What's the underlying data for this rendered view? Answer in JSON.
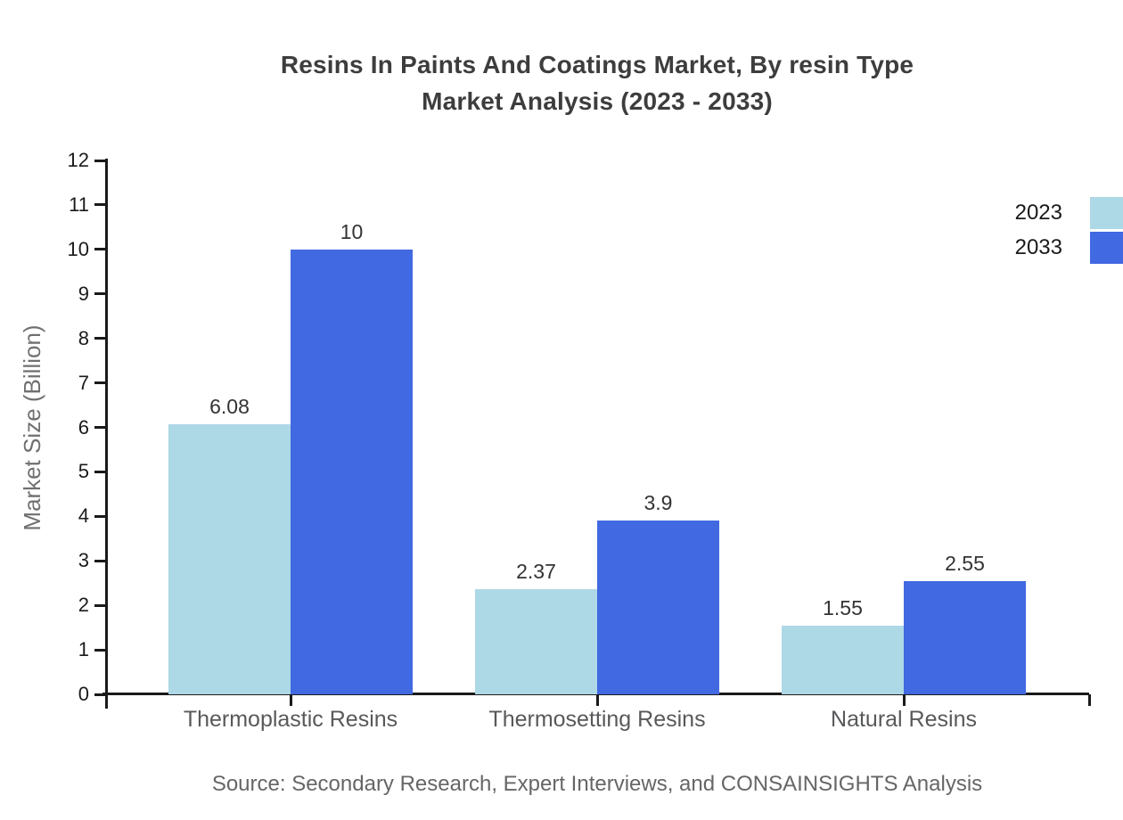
{
  "title": {
    "line1": "Resins In Paints And Coatings Market, By resin Type",
    "line2": "Market Analysis (2023 - 2033)"
  },
  "chart_data": {
    "type": "bar",
    "title": "Resins In Paints And Coatings Market, By resin Type Market Analysis (2023 - 2033)",
    "categories": [
      "Thermoplastic Resins",
      "Thermosetting Resins",
      "Natural Resins"
    ],
    "series": [
      {
        "name": "2023",
        "color": "#ADD8E6",
        "values": [
          6.08,
          2.37,
          1.55
        ],
        "labels": [
          "6.08",
          "2.37",
          "1.55"
        ]
      },
      {
        "name": "2033",
        "color": "#4169E1",
        "values": [
          10,
          3.9,
          2.55
        ],
        "labels": [
          "10",
          "3.9",
          "2.55"
        ]
      }
    ],
    "xlabel": "",
    "ylabel": "Market Size (Billion)",
    "ylim": [
      0,
      12
    ],
    "yticks": [
      0,
      1,
      2,
      3,
      4,
      5,
      6,
      7,
      8,
      9,
      10,
      11,
      12
    ],
    "grid": false,
    "legend_position": "top-right"
  },
  "source": {
    "text": "Source: Secondary Research, Expert Interviews, and CONSAINSIGHTS Analysis"
  },
  "colors": {
    "series_2023": "#ADD8E6",
    "series_2033": "#4169E1",
    "title_text": "#3d3d3d",
    "axis": "#1a1a1a",
    "category_text": "#58595b",
    "muted_text": "#666666"
  }
}
